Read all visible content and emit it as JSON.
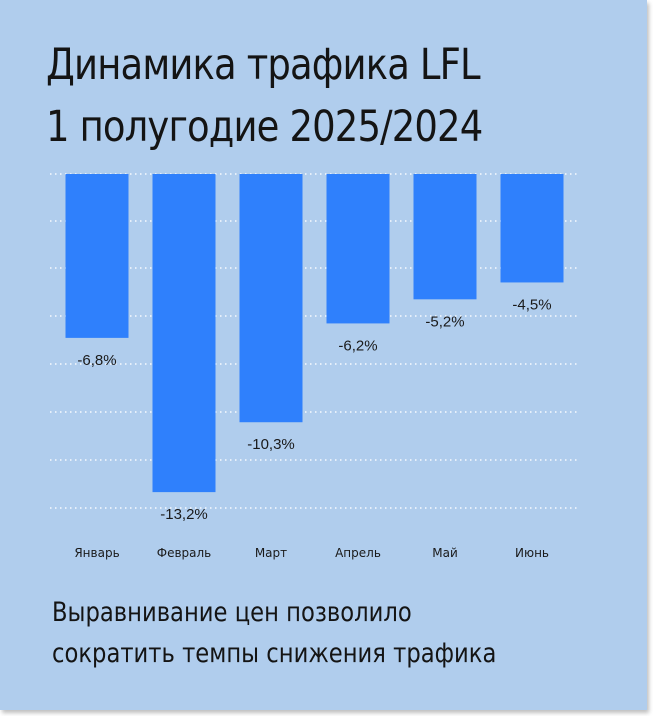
{
  "title_line_1": "Динамика трафика LFL",
  "title_line_2": "1 полугодие 2025/2024",
  "caption_line_1": "Выравнивание цен позволило",
  "caption_line_2": "сократить темпы снижения трафика",
  "colors": {
    "background": "#b0cded",
    "bar": "#2f80fc",
    "gridline": "#ffffff",
    "text": "#141414"
  },
  "chart_data": {
    "type": "bar",
    "title": "Динамика трафика LFL 1 полугодие 2025/2024",
    "categories": [
      "Январь",
      "Февраль",
      "Март",
      "Апрель",
      "Май",
      "Июнь"
    ],
    "values": [
      -6.8,
      -13.2,
      -10.3,
      -6.2,
      -5.2,
      -4.5
    ],
    "value_labels": [
      "-6,8%",
      "-13,2%",
      "-10,3%",
      "-6,2%",
      "-5,2%",
      "-4,5%"
    ],
    "ylim": [
      -14,
      0
    ],
    "grid": true,
    "legend": "none"
  }
}
